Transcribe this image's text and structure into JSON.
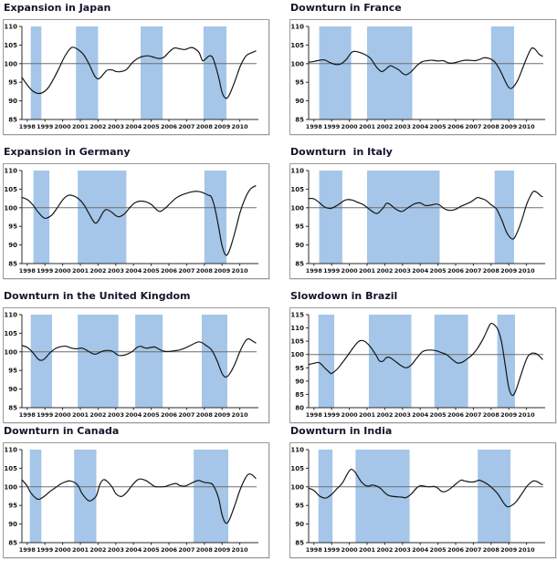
{
  "style": {
    "band_color": "#A5C6E8",
    "line_color": "#161616",
    "ref_line_color": "#6e6e6e",
    "axis_color": "#2b2b2b",
    "box_border_color": "#9a9a9a",
    "title_color": "#14142b"
  },
  "chart_data": [
    {
      "type": "line",
      "title": "Expansion in Japan",
      "ylim": [
        85,
        110
      ],
      "yticks": [
        85,
        90,
        95,
        100,
        105,
        110
      ],
      "xlim": [
        1997.7,
        2010.95
      ],
      "xticks": [
        1998,
        1999,
        2000,
        2001,
        2002,
        2003,
        2004,
        2005,
        2006,
        2007,
        2008,
        2009,
        2010
      ],
      "ref_line": 100,
      "bands": [
        [
          1998.2,
          1998.8
        ],
        [
          2000.75,
          2002.0
        ],
        [
          2004.4,
          2005.65
        ],
        [
          2007.95,
          2009.25
        ]
      ],
      "x": [
        1997.7,
        1998.0,
        1998.3,
        1998.6,
        1998.9,
        1999.2,
        1999.5,
        1999.8,
        2000.1,
        2000.4,
        2000.6,
        2000.9,
        2001.2,
        2001.5,
        2001.8,
        2002.0,
        2002.2,
        2002.5,
        2002.8,
        2003.0,
        2003.3,
        2003.6,
        2003.9,
        2004.2,
        2004.5,
        2004.8,
        2005.1,
        2005.4,
        2005.7,
        2006.0,
        2006.3,
        2006.6,
        2006.9,
        2007.2,
        2007.4,
        2007.7,
        2007.9,
        2008.1,
        2008.3,
        2008.5,
        2008.8,
        2009.0,
        2009.2,
        2009.4,
        2009.7,
        2010.0,
        2010.2,
        2010.4,
        2010.6,
        2010.9
      ],
      "y": [
        96.3,
        94.3,
        92.7,
        92.0,
        92.3,
        93.6,
        96.0,
        98.8,
        101.8,
        103.9,
        104.4,
        103.7,
        102.3,
        99.8,
        96.8,
        95.9,
        96.6,
        98.2,
        98.3,
        97.9,
        97.9,
        98.4,
        100.1,
        101.3,
        101.9,
        102.1,
        101.8,
        101.4,
        101.7,
        103.1,
        104.2,
        104.0,
        103.8,
        104.3,
        104.2,
        103.0,
        100.8,
        101.4,
        102.1,
        101.3,
        96.5,
        92.3,
        90.7,
        91.5,
        95.0,
        99.0,
        101.0,
        102.3,
        102.8,
        103.4
      ]
    },
    {
      "type": "line",
      "title": "Downturn in France",
      "ylim": [
        85,
        110
      ],
      "yticks": [
        85,
        90,
        95,
        100,
        105,
        110
      ],
      "xlim": [
        1997.7,
        2010.95
      ],
      "xticks": [
        1998,
        1999,
        2000,
        2001,
        2002,
        2003,
        2004,
        2005,
        2006,
        2007,
        2008,
        2009,
        2010
      ],
      "ref_line": 100,
      "bands": [
        [
          1998.3,
          2000.1
        ],
        [
          2001.0,
          2003.55
        ],
        [
          2008.0,
          2009.3
        ]
      ],
      "x": [
        1997.7,
        1998.0,
        1998.3,
        1998.6,
        1998.9,
        1999.2,
        1999.5,
        1999.8,
        2000.1,
        2000.3,
        2000.6,
        2000.9,
        2001.2,
        2001.5,
        2001.8,
        2002.0,
        2002.3,
        2002.5,
        2002.8,
        2003.0,
        2003.2,
        2003.5,
        2003.8,
        2004.1,
        2004.4,
        2004.7,
        2005.0,
        2005.3,
        2005.6,
        2005.9,
        2006.2,
        2006.5,
        2006.8,
        2007.1,
        2007.4,
        2007.6,
        2007.9,
        2008.2,
        2008.5,
        2008.8,
        2009.0,
        2009.2,
        2009.5,
        2009.8,
        2010.1,
        2010.3,
        2010.5,
        2010.7,
        2010.9
      ],
      "y": [
        100.4,
        100.6,
        100.9,
        101.0,
        100.3,
        99.8,
        99.9,
        101.0,
        102.9,
        103.3,
        103.0,
        102.4,
        101.4,
        99.3,
        97.9,
        98.3,
        99.4,
        99.1,
        98.3,
        97.4,
        97.0,
        97.9,
        99.4,
        100.5,
        100.8,
        100.9,
        100.7,
        100.8,
        100.2,
        100.2,
        100.6,
        100.9,
        100.9,
        100.8,
        101.2,
        101.6,
        101.4,
        100.5,
        98.3,
        95.3,
        93.6,
        93.5,
        95.5,
        99.0,
        102.5,
        104.2,
        103.8,
        102.6,
        102.0
      ]
    },
    {
      "type": "line",
      "title": "Expansion in Germany",
      "ylim": [
        85,
        110
      ],
      "yticks": [
        85,
        90,
        95,
        100,
        105,
        110
      ],
      "xlim": [
        1997.7,
        2010.95
      ],
      "xticks": [
        1998,
        1999,
        2000,
        2001,
        2002,
        2003,
        2004,
        2005,
        2006,
        2007,
        2008,
        2009,
        2010
      ],
      "ref_line": 100,
      "bands": [
        [
          1998.35,
          1999.25
        ],
        [
          2000.85,
          2003.6
        ],
        [
          2008.0,
          2009.25
        ]
      ],
      "x": [
        1997.7,
        1998.0,
        1998.3,
        1998.6,
        1998.9,
        1999.1,
        1999.4,
        1999.7,
        2000.0,
        2000.3,
        2000.6,
        2000.9,
        2001.2,
        2001.5,
        2001.8,
        2002.0,
        2002.3,
        2002.5,
        2002.8,
        2003.0,
        2003.2,
        2003.5,
        2003.8,
        2004.1,
        2004.4,
        2004.7,
        2005.0,
        2005.3,
        2005.5,
        2005.8,
        2006.1,
        2006.4,
        2006.7,
        2007.0,
        2007.3,
        2007.6,
        2007.9,
        2008.2,
        2008.4,
        2008.6,
        2008.8,
        2009.0,
        2009.2,
        2009.4,
        2009.7,
        2010.0,
        2010.3,
        2010.6,
        2010.9
      ],
      "y": [
        102.8,
        102.2,
        100.9,
        98.9,
        97.4,
        97.2,
        98.1,
        100.0,
        102.1,
        103.3,
        103.2,
        102.4,
        100.8,
        98.3,
        96.0,
        96.4,
        98.9,
        99.5,
        98.7,
        97.9,
        97.6,
        98.4,
        100.1,
        101.4,
        101.8,
        101.6,
        100.9,
        99.5,
        99.0,
        99.9,
        101.3,
        102.6,
        103.4,
        103.9,
        104.3,
        104.4,
        104.1,
        103.4,
        102.9,
        99.8,
        95.0,
        89.8,
        87.3,
        88.3,
        93.0,
        98.5,
        102.5,
        105.0,
        105.9
      ]
    },
    {
      "type": "line",
      "title": "Downturn  in Italy",
      "ylim": [
        85,
        110
      ],
      "yticks": [
        85,
        90,
        95,
        100,
        105,
        110
      ],
      "xlim": [
        1997.7,
        2010.95
      ],
      "xticks": [
        1998,
        1999,
        2000,
        2001,
        2002,
        2003,
        2004,
        2005,
        2006,
        2007,
        2008,
        2009,
        2010
      ],
      "ref_line": 100,
      "bands": [
        [
          1998.3,
          1999.6
        ],
        [
          2001.0,
          2005.1
        ],
        [
          2008.2,
          2009.3
        ]
      ],
      "x": [
        1997.7,
        1998.0,
        1998.3,
        1998.6,
        1998.9,
        1999.1,
        1999.4,
        1999.7,
        1999.9,
        2000.2,
        2000.5,
        2000.8,
        2001.1,
        2001.4,
        2001.6,
        2001.9,
        2002.1,
        2002.3,
        2002.6,
        2002.9,
        2003.1,
        2003.4,
        2003.7,
        2004.0,
        2004.3,
        2004.6,
        2004.9,
        2005.1,
        2005.4,
        2005.7,
        2006.0,
        2006.3,
        2006.6,
        2006.9,
        2007.2,
        2007.4,
        2007.7,
        2008.0,
        2008.3,
        2008.6,
        2008.9,
        2009.2,
        2009.4,
        2009.7,
        2010.0,
        2010.2,
        2010.4,
        2010.6,
        2010.8,
        2010.9
      ],
      "y": [
        102.5,
        102.4,
        101.4,
        100.2,
        99.8,
        100.1,
        100.9,
        101.9,
        102.2,
        102.0,
        101.4,
        100.8,
        99.7,
        98.7,
        98.5,
        99.9,
        101.2,
        100.9,
        99.7,
        99.0,
        99.3,
        100.3,
        101.1,
        101.3,
        100.6,
        100.7,
        101.0,
        100.7,
        99.6,
        99.3,
        99.6,
        100.4,
        101.0,
        101.7,
        102.7,
        102.6,
        102.0,
        100.8,
        99.7,
        96.8,
        93.2,
        91.6,
        92.6,
        96.2,
        100.8,
        103.0,
        104.4,
        104.1,
        103.2,
        103.0
      ]
    },
    {
      "type": "line",
      "title": "Downturn in the United Kingdom",
      "ylim": [
        85,
        110
      ],
      "yticks": [
        85,
        90,
        95,
        100,
        105,
        110
      ],
      "xlim": [
        1997.7,
        2010.95
      ],
      "xticks": [
        1998,
        1999,
        2000,
        2001,
        2002,
        2003,
        2004,
        2005,
        2006,
        2007,
        2008,
        2009,
        2010
      ],
      "ref_line": 100,
      "bands": [
        [
          1998.2,
          1999.4
        ],
        [
          2000.85,
          2003.15
        ],
        [
          2004.1,
          2005.65
        ],
        [
          2007.85,
          2009.3
        ]
      ],
      "x": [
        1997.7,
        1998.0,
        1998.3,
        1998.6,
        1998.8,
        1999.0,
        1999.3,
        1999.6,
        1999.9,
        2000.2,
        2000.5,
        2000.8,
        2001.1,
        2001.4,
        2001.7,
        2001.9,
        2002.2,
        2002.5,
        2002.8,
        2003.1,
        2003.3,
        2003.6,
        2003.9,
        2004.2,
        2004.4,
        2004.7,
        2005.0,
        2005.2,
        2005.5,
        2005.7,
        2006.0,
        2006.3,
        2006.6,
        2006.9,
        2007.2,
        2007.5,
        2007.7,
        2007.9,
        2008.1,
        2008.4,
        2008.7,
        2009.0,
        2009.2,
        2009.4,
        2009.7,
        2010.0,
        2010.3,
        2010.5,
        2010.7,
        2010.9
      ],
      "y": [
        101.7,
        101.2,
        99.9,
        98.1,
        97.7,
        98.2,
        99.8,
        100.9,
        101.4,
        101.5,
        101.0,
        100.8,
        101.0,
        100.3,
        99.5,
        99.4,
        100.1,
        100.4,
        100.2,
        99.2,
        99.0,
        99.3,
        100.0,
        101.2,
        101.5,
        101.0,
        101.2,
        101.3,
        100.6,
        100.2,
        100.1,
        100.3,
        100.5,
        101.0,
        101.7,
        102.4,
        102.7,
        102.4,
        101.7,
        100.6,
        97.8,
        94.2,
        93.2,
        93.9,
        96.5,
        100.0,
        102.8,
        103.5,
        103.0,
        102.4
      ]
    },
    {
      "type": "line",
      "title": "Slowdown in Brazil",
      "ylim": [
        80,
        115
      ],
      "yticks": [
        80,
        85,
        90,
        95,
        100,
        105,
        110,
        115
      ],
      "xlim": [
        1997.7,
        2010.95
      ],
      "xticks": [
        1998,
        1999,
        2000,
        2001,
        2002,
        2003,
        2004,
        2005,
        2006,
        2007,
        2008,
        2009,
        2010
      ],
      "ref_line": 100,
      "bands": [
        [
          1998.25,
          1999.15
        ],
        [
          2001.1,
          2003.5
        ],
        [
          2004.8,
          2006.7
        ],
        [
          2008.35,
          2009.35
        ]
      ],
      "x": [
        1997.7,
        1998.0,
        1998.3,
        1998.6,
        1998.9,
        1999.0,
        1999.3,
        1999.6,
        1999.9,
        2000.2,
        2000.5,
        2000.7,
        2000.9,
        2001.2,
        2001.5,
        2001.7,
        2001.9,
        2002.1,
        2002.3,
        2002.6,
        2002.9,
        2003.2,
        2003.5,
        2003.8,
        2004.1,
        2004.3,
        2004.6,
        2004.9,
        2005.2,
        2005.5,
        2005.8,
        2006.1,
        2006.4,
        2006.7,
        2007.0,
        2007.3,
        2007.6,
        2007.9,
        2008.0,
        2008.2,
        2008.4,
        2008.6,
        2008.8,
        2009.0,
        2009.2,
        2009.4,
        2009.6,
        2009.9,
        2010.1,
        2010.3,
        2010.5,
        2010.7,
        2010.9
      ],
      "y": [
        96.2,
        96.7,
        96.9,
        95.0,
        93.1,
        92.9,
        94.4,
        96.9,
        99.6,
        102.4,
        104.8,
        105.3,
        104.8,
        102.8,
        99.8,
        97.6,
        97.5,
        98.9,
        98.8,
        97.4,
        95.9,
        95.0,
        96.1,
        98.6,
        100.9,
        101.5,
        101.7,
        101.4,
        100.7,
        99.9,
        98.2,
        96.8,
        97.2,
        98.6,
        100.3,
        103.0,
        106.5,
        110.8,
        111.7,
        111.1,
        109.2,
        104.5,
        96.0,
        87.5,
        84.6,
        86.5,
        90.5,
        96.5,
        99.5,
        100.5,
        100.4,
        99.6,
        98.2
      ]
    },
    {
      "type": "line",
      "title": "Downturn in Canada",
      "ylim": [
        85,
        110
      ],
      "yticks": [
        85,
        90,
        95,
        100,
        105,
        110
      ],
      "xlim": [
        1997.7,
        2010.95
      ],
      "xticks": [
        1998,
        1999,
        2000,
        2001,
        2002,
        2003,
        2004,
        2005,
        2006,
        2007,
        2008,
        2009,
        2010
      ],
      "ref_line": 100,
      "bands": [
        [
          1998.15,
          1998.8
        ],
        [
          2000.65,
          2001.9
        ],
        [
          2007.4,
          2009.35
        ]
      ],
      "x": [
        1997.7,
        1998.0,
        1998.2,
        1998.5,
        1998.7,
        1999.0,
        1999.3,
        1999.6,
        1999.9,
        2000.2,
        2000.4,
        2000.7,
        2000.9,
        2001.1,
        2001.4,
        2001.6,
        2001.9,
        2002.1,
        2002.3,
        2002.5,
        2002.8,
        2003.0,
        2003.3,
        2003.6,
        2003.9,
        2004.2,
        2004.4,
        2004.7,
        2005.0,
        2005.2,
        2005.5,
        2005.8,
        2006.1,
        2006.4,
        2006.6,
        2006.9,
        2007.2,
        2007.5,
        2007.7,
        2008.0,
        2008.3,
        2008.5,
        2008.8,
        2009.0,
        2009.2,
        2009.4,
        2009.7,
        2010.0,
        2010.3,
        2010.5,
        2010.7,
        2010.9
      ],
      "y": [
        101.9,
        100.2,
        98.4,
        96.9,
        96.7,
        97.6,
        98.8,
        99.8,
        100.8,
        101.4,
        101.6,
        101.1,
        100.1,
        98.2,
        96.5,
        96.3,
        97.6,
        100.6,
        101.9,
        101.5,
        99.9,
        98.2,
        97.4,
        98.4,
        100.3,
        101.8,
        102.1,
        101.7,
        100.7,
        100.1,
        100.0,
        100.1,
        100.6,
        100.9,
        100.4,
        100.2,
        100.8,
        101.5,
        101.7,
        101.2,
        101.0,
        100.4,
        97.0,
        92.5,
        90.3,
        91.0,
        94.8,
        99.0,
        102.2,
        103.4,
        103.2,
        102.3
      ]
    },
    {
      "type": "line",
      "title": "Downturn in India",
      "ylim": [
        85,
        110
      ],
      "yticks": [
        85,
        90,
        95,
        100,
        105,
        110
      ],
      "xlim": [
        1997.7,
        2010.95
      ],
      "xticks": [
        1998,
        1999,
        2000,
        2001,
        2002,
        2003,
        2004,
        2005,
        2006,
        2007,
        2008,
        2009,
        2010
      ],
      "ref_line": 100,
      "bands": [
        [
          1998.25,
          1999.05
        ],
        [
          2000.35,
          2003.4
        ],
        [
          2007.25,
          2009.1
        ]
      ],
      "x": [
        1997.7,
        1998.0,
        1998.3,
        1998.5,
        1998.7,
        1999.0,
        1999.3,
        1999.6,
        1999.9,
        2000.1,
        2000.3,
        2000.5,
        2000.7,
        2000.9,
        2001.1,
        2001.3,
        2001.6,
        2001.8,
        2002.0,
        2002.2,
        2002.5,
        2002.8,
        2003.0,
        2003.2,
        2003.5,
        2003.8,
        2004.0,
        2004.2,
        2004.5,
        2004.8,
        2005.0,
        2005.2,
        2005.4,
        2005.7,
        2006.0,
        2006.3,
        2006.5,
        2006.8,
        2007.1,
        2007.3,
        2007.5,
        2007.8,
        2008.1,
        2008.4,
        2008.7,
        2008.9,
        2009.1,
        2009.4,
        2009.7,
        2010.0,
        2010.2,
        2010.4,
        2010.6,
        2010.8,
        2010.9
      ],
      "y": [
        99.6,
        99.0,
        97.6,
        97.1,
        97.0,
        98.0,
        99.5,
        101.0,
        103.6,
        104.7,
        104.1,
        102.6,
        101.2,
        100.4,
        100.2,
        100.5,
        100.1,
        99.4,
        98.4,
        97.7,
        97.4,
        97.3,
        97.2,
        97.1,
        98.1,
        99.7,
        100.3,
        100.2,
        100.0,
        100.1,
        99.6,
        98.8,
        98.7,
        99.5,
        100.7,
        101.8,
        101.6,
        101.3,
        101.4,
        101.8,
        101.5,
        100.7,
        99.5,
        98.0,
        95.7,
        94.7,
        94.8,
        95.9,
        97.9,
        100.0,
        101.0,
        101.6,
        101.4,
        100.8,
        100.6
      ]
    }
  ]
}
